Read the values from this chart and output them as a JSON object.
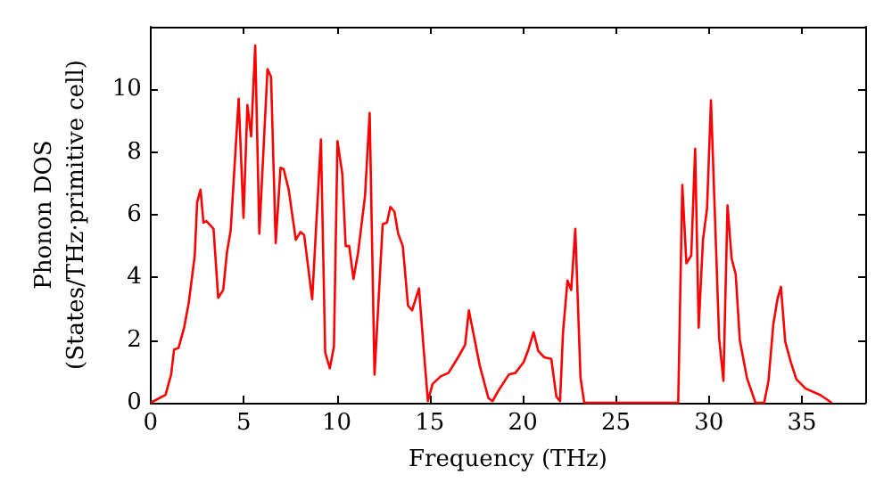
{
  "chart_data": {
    "type": "line",
    "xlabel": "Frequency (THz)",
    "ylabel": "Phonon DOS\n(States/THz·primitive cell)",
    "xlim": [
      0,
      38.4
    ],
    "ylim": [
      0,
      12
    ],
    "xticks": [
      0,
      5,
      10,
      15,
      20,
      25,
      30,
      35
    ],
    "yticks": [
      0,
      2,
      4,
      6,
      8,
      10
    ],
    "grid": false,
    "marker": "none",
    "line_style": "solid",
    "series": [
      {
        "color": "#ff0000",
        "x": [
          0,
          0.8,
          1.1,
          1.26,
          1.5,
          1.8,
          2.05,
          2.37,
          2.5,
          2.68,
          2.84,
          3.0,
          3.38,
          3.63,
          3.9,
          4.1,
          4.3,
          4.73,
          4.99,
          5.2,
          5.4,
          5.62,
          5.84,
          6.28,
          6.47,
          6.72,
          6.98,
          7.15,
          7.42,
          7.8,
          8.05,
          8.25,
          8.68,
          9.15,
          9.38,
          9.63,
          9.85,
          10.04,
          10.3,
          10.48,
          10.67,
          10.9,
          11.15,
          11.52,
          11.77,
          12.03,
          12.47,
          12.7,
          12.88,
          13.1,
          13.3,
          13.55,
          13.83,
          14.05,
          14.42,
          14.68,
          14.9,
          15.15,
          15.6,
          16.0,
          16.57,
          16.9,
          17.1,
          17.68,
          18.15,
          18.37,
          18.7,
          19.25,
          19.6,
          20.05,
          20.3,
          20.58,
          20.83,
          21.15,
          21.53,
          21.8,
          22.0,
          22.16,
          22.4,
          22.6,
          22.82,
          23.1,
          23.3,
          28.35,
          28.57,
          28.79,
          29.05,
          29.26,
          29.45,
          29.68,
          29.9,
          30.11,
          30.55,
          30.78,
          31.0,
          31.22,
          31.44,
          31.66,
          32.04,
          32.5,
          32.97,
          33.2,
          33.46,
          33.68,
          33.87,
          34.1,
          34.4,
          34.7,
          35.2,
          35.98,
          36.6
        ],
        "values": [
          0,
          0.25,
          0.9,
          1.7,
          1.75,
          2.4,
          3.2,
          4.7,
          6.4,
          6.8,
          5.75,
          5.8,
          5.55,
          3.35,
          3.6,
          4.8,
          5.5,
          9.7,
          5.9,
          9.5,
          8.5,
          11.4,
          5.4,
          10.65,
          10.4,
          5.1,
          7.5,
          7.45,
          6.8,
          5.2,
          5.45,
          5.35,
          3.3,
          8.4,
          1.6,
          1.1,
          1.8,
          8.35,
          7.3,
          5.0,
          5.0,
          3.95,
          4.8,
          6.6,
          9.25,
          0.9,
          5.7,
          5.75,
          6.25,
          6.1,
          5.4,
          5.0,
          3.1,
          2.95,
          3.65,
          1.65,
          0.05,
          0.6,
          0.85,
          0.95,
          1.5,
          1.85,
          2.95,
          1.2,
          0.15,
          0.05,
          0.4,
          0.9,
          0.95,
          1.3,
          1.7,
          2.25,
          1.65,
          1.45,
          1.4,
          0.2,
          0.05,
          2.25,
          3.9,
          3.6,
          5.55,
          0.8,
          0,
          0,
          6.95,
          4.45,
          4.7,
          8.1,
          2.4,
          5.2,
          6.2,
          9.65,
          2.05,
          0.7,
          6.3,
          4.6,
          4.1,
          2.0,
          0.8,
          0,
          0,
          0.7,
          2.5,
          3.3,
          3.7,
          1.95,
          1.3,
          0.75,
          0.45,
          0.25,
          0
        ]
      }
    ]
  }
}
